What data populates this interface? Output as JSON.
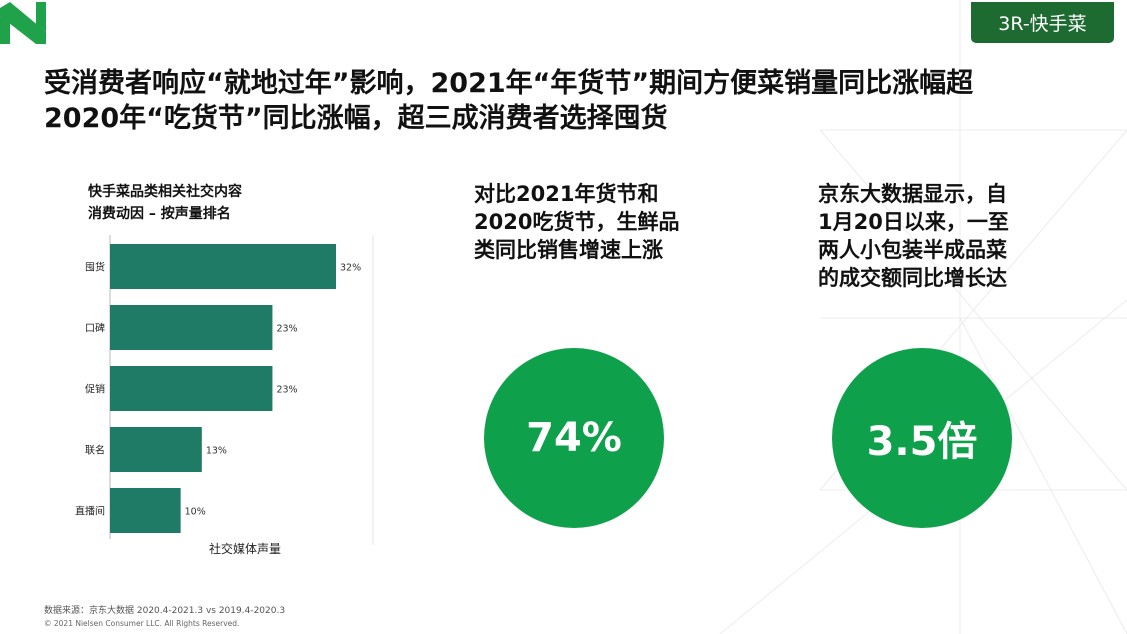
{
  "header": {
    "tag_label": "3R-快手菜",
    "title_line1": "受消费者响应“就地过年”影响，2021年“年货节”期间方便菜销量同比涨幅超",
    "title_line2": "2020年“吃货节”同比涨幅，超三成消费者选择囤货"
  },
  "chart_title": {
    "line1": "快手菜品类相关社交内容",
    "line2": "消费动因 – 按声量排名"
  },
  "chart_data": {
    "type": "bar",
    "orientation": "horizontal",
    "categories": [
      "囤货",
      "口碑",
      "促销",
      "联名",
      "直播间"
    ],
    "values": [
      32,
      23,
      23,
      13,
      10
    ],
    "value_labels": [
      "32%",
      "23%",
      "23%",
      "13%",
      "10%"
    ],
    "xlabel": "社交媒体声量",
    "bar_color": "#1f7a66",
    "xlim": [
      0,
      32
    ]
  },
  "stat1": {
    "text_lines": [
      "对比2021年货节和",
      "2020吃货节，生鲜品",
      "类同比销售增速上涨"
    ],
    "value": "74%"
  },
  "stat2": {
    "text_lines": [
      "京东大数据显示，自",
      "1月20日以来，一至",
      "两人小包装半成品菜",
      "的成交额同比增长达"
    ],
    "value": "3.5倍"
  },
  "footer": {
    "source": "数据来源：京东大数据 2020.4-2021.3 vs 2019.4-2020.3",
    "copyright": "© 2021 Nielsen Consumer LLC. All Rights Reserved."
  },
  "colors": {
    "accent_green": "#0ea04a",
    "tag_green": "#1e6b32",
    "bar_green": "#1f7a66"
  }
}
